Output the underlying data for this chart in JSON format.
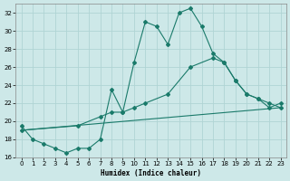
{
  "line1_x": [
    0,
    1,
    2,
    3,
    4,
    5,
    6,
    7,
    8,
    9,
    10,
    11,
    12,
    13,
    14,
    15,
    16,
    17,
    18,
    19,
    20,
    21,
    22,
    23
  ],
  "line1_y": [
    19.5,
    18.0,
    17.5,
    17.0,
    16.5,
    17.0,
    17.0,
    18.0,
    23.5,
    21.0,
    26.5,
    31.0,
    30.5,
    28.5,
    32.0,
    32.5,
    30.5,
    27.5,
    26.5,
    24.5,
    23.0,
    22.5,
    21.5,
    22.0
  ],
  "line2_x": [
    0,
    23
  ],
  "line2_y": [
    19.0,
    21.5
  ],
  "line3_x": [
    0,
    5,
    7,
    8,
    9,
    10,
    11,
    13,
    15,
    17,
    18,
    19,
    20,
    21,
    22,
    23
  ],
  "line3_y": [
    19.0,
    19.5,
    20.5,
    21.0,
    21.0,
    21.5,
    22.0,
    23.0,
    26.0,
    27.0,
    26.5,
    24.5,
    23.0,
    22.5,
    22.0,
    21.5
  ],
  "line_color": "#1a7a6a",
  "bg_color": "#cde8e8",
  "grid_color": "#b0d4d4",
  "xlabel": "Humidex (Indice chaleur)",
  "xlim": [
    -0.5,
    23.5
  ],
  "ylim": [
    16,
    33
  ],
  "yticks": [
    16,
    18,
    20,
    22,
    24,
    26,
    28,
    30,
    32
  ],
  "xticks": [
    0,
    1,
    2,
    3,
    4,
    5,
    6,
    7,
    8,
    9,
    10,
    11,
    12,
    13,
    14,
    15,
    16,
    17,
    18,
    19,
    20,
    21,
    22,
    23
  ]
}
